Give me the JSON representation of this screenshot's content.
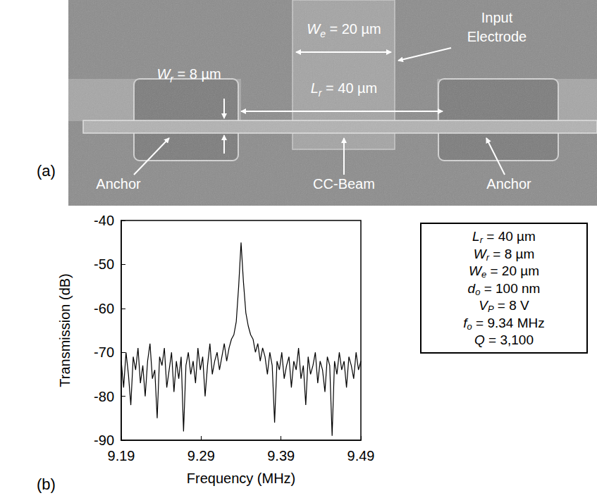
{
  "panels": {
    "a": "(a)",
    "b": "(b)"
  },
  "sem_image": {
    "electrode_width": {
      "var": "W",
      "sub": "e",
      "text": "= 20 µm"
    },
    "input_electrode": [
      "Input",
      "Electrode"
    ],
    "beam_width": {
      "var": "W",
      "sub": "r",
      "text": "= 8 µm"
    },
    "beam_length": {
      "var": "L",
      "sub": "r",
      "text": "= 40 µm"
    },
    "anchor_left": "Anchor",
    "beam": "CC-Beam",
    "anchor_right": "Anchor"
  },
  "parameters": [
    {
      "var": "L",
      "sub": "r",
      "text": "= 40 µm"
    },
    {
      "var": "W",
      "sub": "r",
      "text": "= 8 µm"
    },
    {
      "var": "W",
      "sub": "e",
      "text": "= 20 µm"
    },
    {
      "var": "d",
      "sub": "o",
      "text": "= 100 nm"
    },
    {
      "var": "V",
      "sub": "P",
      "text": "= 8 V"
    },
    {
      "var": "f",
      "sub": "o",
      "text": "= 9.34 MHz"
    },
    {
      "var": "Q",
      "text": "= 3,100"
    }
  ],
  "chart_data": {
    "type": "line",
    "x_label": "Frequency (MHz)",
    "y_label": "Transmission (dB)",
    "color": "#000000",
    "grid": false,
    "xlim": [
      9.19,
      9.49
    ],
    "xticks": [
      9.19,
      9.29,
      9.39,
      9.49
    ],
    "ylim": [
      -90,
      -40
    ],
    "yticks": [
      -90,
      -80,
      -70,
      -60,
      -50,
      -40
    ],
    "x": [
      9.19,
      9.193,
      9.196,
      9.199,
      9.202,
      9.205,
      9.208,
      9.211,
      9.214,
      9.217,
      9.22,
      9.223,
      9.226,
      9.229,
      9.232,
      9.235,
      9.238,
      9.241,
      9.244,
      9.247,
      9.25,
      9.253,
      9.256,
      9.259,
      9.262,
      9.265,
      9.268,
      9.271,
      9.274,
      9.277,
      9.28,
      9.283,
      9.286,
      9.289,
      9.292,
      9.295,
      9.298,
      9.301,
      9.304,
      9.307,
      9.31,
      9.313,
      9.316,
      9.319,
      9.322,
      9.325,
      9.328,
      9.331,
      9.334,
      9.337,
      9.34,
      9.343,
      9.346,
      9.349,
      9.352,
      9.355,
      9.358,
      9.361,
      9.364,
      9.367,
      9.37,
      9.373,
      9.376,
      9.379,
      9.382,
      9.385,
      9.388,
      9.391,
      9.394,
      9.397,
      9.4,
      9.403,
      9.406,
      9.409,
      9.412,
      9.415,
      9.418,
      9.421,
      9.424,
      9.427,
      9.43,
      9.433,
      9.436,
      9.439,
      9.442,
      9.445,
      9.448,
      9.451,
      9.454,
      9.457,
      9.46,
      9.463,
      9.466,
      9.469,
      9.472,
      9.475,
      9.478,
      9.481,
      9.484,
      9.487,
      9.49
    ],
    "values": [
      -72,
      -78,
      -70,
      -75,
      -82,
      -71,
      -74,
      -69,
      -77,
      -73,
      -80,
      -72,
      -68,
      -76,
      -74,
      -85,
      -71,
      -73,
      -69,
      -78,
      -74,
      -70,
      -79,
      -72,
      -76,
      -71,
      -88,
      -73,
      -70,
      -75,
      -72,
      -77,
      -69,
      -74,
      -71,
      -80,
      -73,
      -68,
      -75,
      -72,
      -70,
      -74,
      -71,
      -68,
      -72,
      -69,
      -67,
      -66,
      -63,
      -55,
      -45,
      -54,
      -61,
      -64,
      -66,
      -67,
      -70,
      -68,
      -72,
      -69,
      -71,
      -75,
      -70,
      -73,
      -86,
      -72,
      -74,
      -70,
      -76,
      -73,
      -71,
      -78,
      -72,
      -74,
      -69,
      -76,
      -73,
      -82,
      -71,
      -75,
      -73,
      -70,
      -77,
      -72,
      -74,
      -79,
      -71,
      -73,
      -89,
      -72,
      -75,
      -70,
      -74,
      -72,
      -78,
      -71,
      -73,
      -76,
      -70,
      -74,
      -72
    ]
  }
}
